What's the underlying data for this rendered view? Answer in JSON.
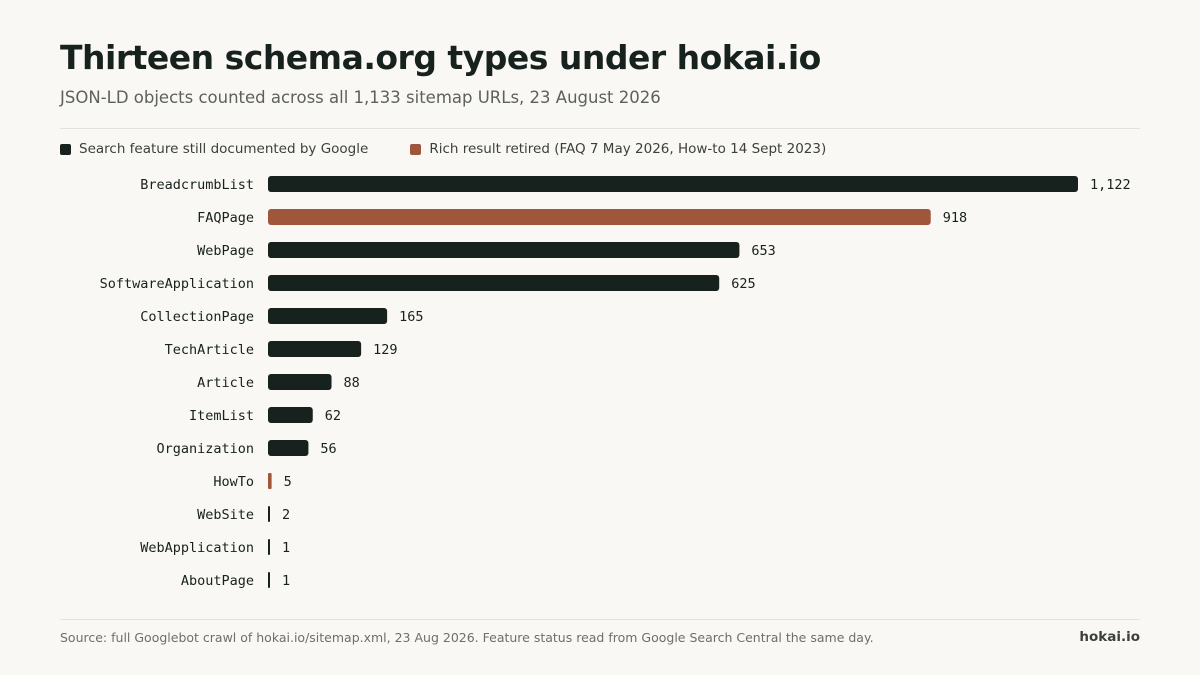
{
  "header": {
    "title": "Thirteen schema.org types under hokai.io",
    "subtitle": "JSON-LD objects counted across all 1,133 sitemap URLs, 23 August 2026"
  },
  "legend": {
    "items": [
      {
        "label": "Search feature still documented by Google",
        "color": "#17211e"
      },
      {
        "label": "Rich result retired (FAQ 7 May 2026, How-to 14 Sept 2023)",
        "color": "#a0563a"
      }
    ]
  },
  "chart_data": {
    "type": "bar",
    "orientation": "horizontal",
    "categories": [
      "BreadcrumbList",
      "FAQPage",
      "WebPage",
      "SoftwareApplication",
      "CollectionPage",
      "TechArticle",
      "Article",
      "ItemList",
      "Organization",
      "HowTo",
      "WebSite",
      "WebApplication",
      "AboutPage"
    ],
    "values": [
      1122,
      918,
      653,
      625,
      165,
      129,
      88,
      62,
      56,
      5,
      2,
      1,
      1
    ],
    "value_labels": [
      "1,122",
      "918",
      "653",
      "625",
      "165",
      "129",
      "88",
      "62",
      "56",
      "5",
      "2",
      "1",
      "1"
    ],
    "status": [
      "documented",
      "retired",
      "documented",
      "documented",
      "documented",
      "documented",
      "documented",
      "documented",
      "documented",
      "retired",
      "documented",
      "documented",
      "documented"
    ],
    "colors": {
      "documented": "#17211e",
      "retired": "#a0563a"
    },
    "xlim": [
      0,
      1122
    ],
    "grid": false,
    "legend_position": "top-left"
  },
  "footer": {
    "source": "Source: full Googlebot crawl of hokai.io/sitemap.xml, 23 Aug 2026. Feature status read from Google Search Central the same day.",
    "brand": "hokai.io"
  }
}
